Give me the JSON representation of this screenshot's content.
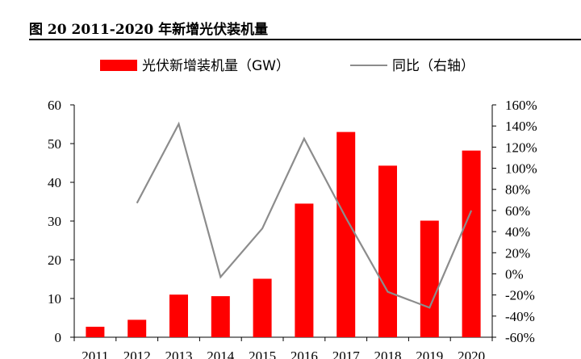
{
  "header": {
    "title": "图 20 2011-2020 年新增光伏装机量"
  },
  "colors": {
    "bar": "#ff0000",
    "line": "#8c8c8c",
    "axis": "#000000"
  },
  "chart_data": {
    "type": "bar",
    "categories": [
      "2011",
      "2012",
      "2013",
      "2014",
      "2015",
      "2016",
      "2017",
      "2018",
      "2019",
      "2020"
    ],
    "series": [
      {
        "name": "光伏新增装机量（GW）",
        "type": "bar",
        "axis": "left",
        "values": [
          2.7,
          4.5,
          11.0,
          10.6,
          15.1,
          34.5,
          53.0,
          44.3,
          30.1,
          48.2
        ]
      },
      {
        "name": "同比（右轴）",
        "type": "line",
        "axis": "right",
        "values": [
          null,
          67,
          142,
          -3,
          43,
          128,
          53,
          -17,
          -32,
          60
        ]
      }
    ],
    "y_left": {
      "lim": [
        0,
        60
      ],
      "ticks": [
        "0",
        "10",
        "20",
        "30",
        "40",
        "50",
        "60"
      ]
    },
    "y_right": {
      "lim": [
        -60,
        160
      ],
      "ticks": [
        "-60%",
        "-40%",
        "-20%",
        "0%",
        "20%",
        "40%",
        "60%",
        "80%",
        "100%",
        "120%",
        "140%",
        "160%"
      ]
    },
    "legend": "top",
    "grid": false
  }
}
